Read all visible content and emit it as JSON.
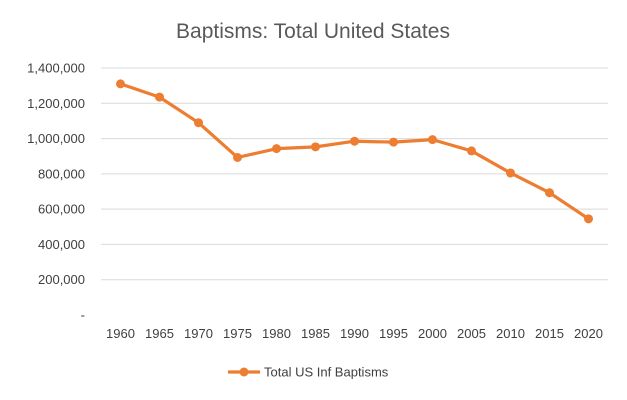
{
  "chart_data": {
    "type": "line",
    "title": "Baptisms: Total United States",
    "x": [
      "1960",
      "1965",
      "1970",
      "1975",
      "1980",
      "1985",
      "1990",
      "1995",
      "2000",
      "2005",
      "2010",
      "2015",
      "2020"
    ],
    "series": [
      {
        "name": "Total US Inf Baptisms",
        "values": [
          1310000,
          1235000,
          1090000,
          893000,
          943000,
          953000,
          985000,
          980000,
          994000,
          930000,
          805000,
          693000,
          545000
        ],
        "color": "#ed7d31"
      }
    ],
    "y_ticks": [
      "-",
      "200,000",
      "400,000",
      "600,000",
      "800,000",
      "1,000,000",
      "1,200,000",
      "1,400,000"
    ],
    "ylim": [
      0,
      1400000
    ],
    "grid": true,
    "legend_position": "bottom"
  }
}
